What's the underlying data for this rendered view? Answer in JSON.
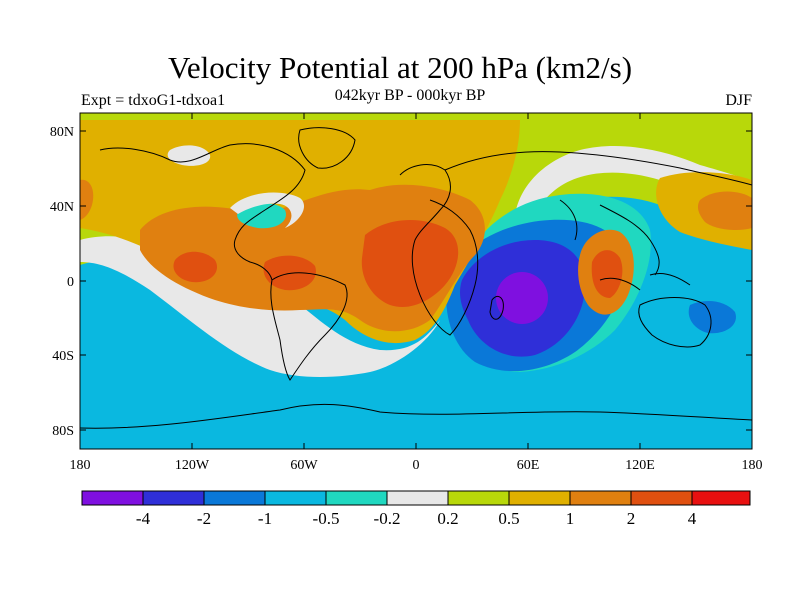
{
  "title": "Velocity Potential at 200 hPa (km2/s)",
  "experiment_label": "Expt = tdxoG1-tdxoa1",
  "period_label": "042kyr BP - 000kyr BP",
  "season_label": "DJF",
  "lat_ticks": [
    "80N",
    "40N",
    "0",
    "40S",
    "80S"
  ],
  "lon_ticks": [
    "180",
    "120W",
    "60W",
    "0",
    "60E",
    "120E",
    "180"
  ],
  "colorbar": {
    "colors": [
      "#7f10e0",
      "#2f2fd8",
      "#0a78d8",
      "#0ab8e0",
      "#20d8c0",
      "#e8e8e8",
      "#b8d80a",
      "#e0b000",
      "#e08010",
      "#e05010",
      "#e81010"
    ],
    "labels": [
      "-4",
      "-2",
      "-1",
      "-0.5",
      "-0.2",
      "0.2",
      "0.5",
      "1",
      "2",
      "4"
    ]
  },
  "field_colors": {
    "background": "#b8d80a",
    "ocean_south": "#0ab8e0",
    "ocean_deep": "#0a78d8",
    "core_neg": "#2f2fd8",
    "min": "#7f10e0",
    "neutral": "#e8e8e8",
    "teal": "#20d8c0",
    "pos1": "#e0b000",
    "pos2": "#e08010",
    "pos3": "#e05010"
  }
}
